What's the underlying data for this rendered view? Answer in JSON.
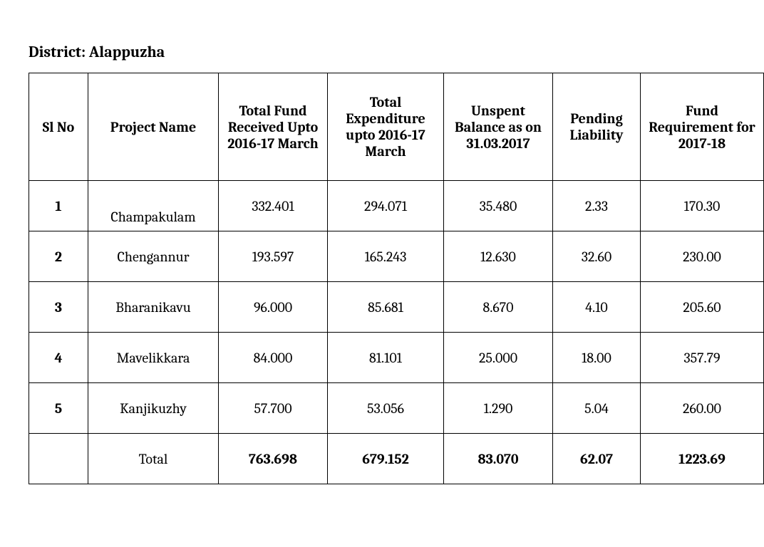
{
  "title": "District: Alappuzha",
  "table": {
    "columns": [
      "Sl No",
      "Project Name",
      "Total Fund Received Upto 2016-17 March",
      "Total Expenditure upto 2016-17 March",
      "Unspent Balance as on 31.03.2017",
      "Pending Liability",
      "Fund Requirement for 2017-18"
    ],
    "rows": [
      {
        "slno": "1",
        "name": "Champakulam",
        "fund": "332.401",
        "exp": "294.071",
        "balance": "35.480",
        "pending": "2.33",
        "req": "170.30"
      },
      {
        "slno": "2",
        "name": "Chengannur",
        "fund": "193.597",
        "exp": "165.243",
        "balance": "12.630",
        "pending": "32.60",
        "req": "230.00"
      },
      {
        "slno": "3",
        "name": "Bharanikavu",
        "fund": "96.000",
        "exp": "85.681",
        "balance": "8.670",
        "pending": "4.10",
        "req": "205.60"
      },
      {
        "slno": "4",
        "name": "Mavelikkara",
        "fund": "84.000",
        "exp": "81.101",
        "balance": "25.000",
        "pending": "18.00",
        "req": "357.79"
      },
      {
        "slno": "5",
        "name": "Kanjikuzhy",
        "fund": "57.700",
        "exp": "53.056",
        "balance": "1.290",
        "pending": "5.04",
        "req": "260.00"
      }
    ],
    "total": {
      "label": "Total",
      "fund": "763.698",
      "exp": "679.152",
      "balance": "83.070",
      "pending": "62.07",
      "req": "1223.69"
    }
  }
}
